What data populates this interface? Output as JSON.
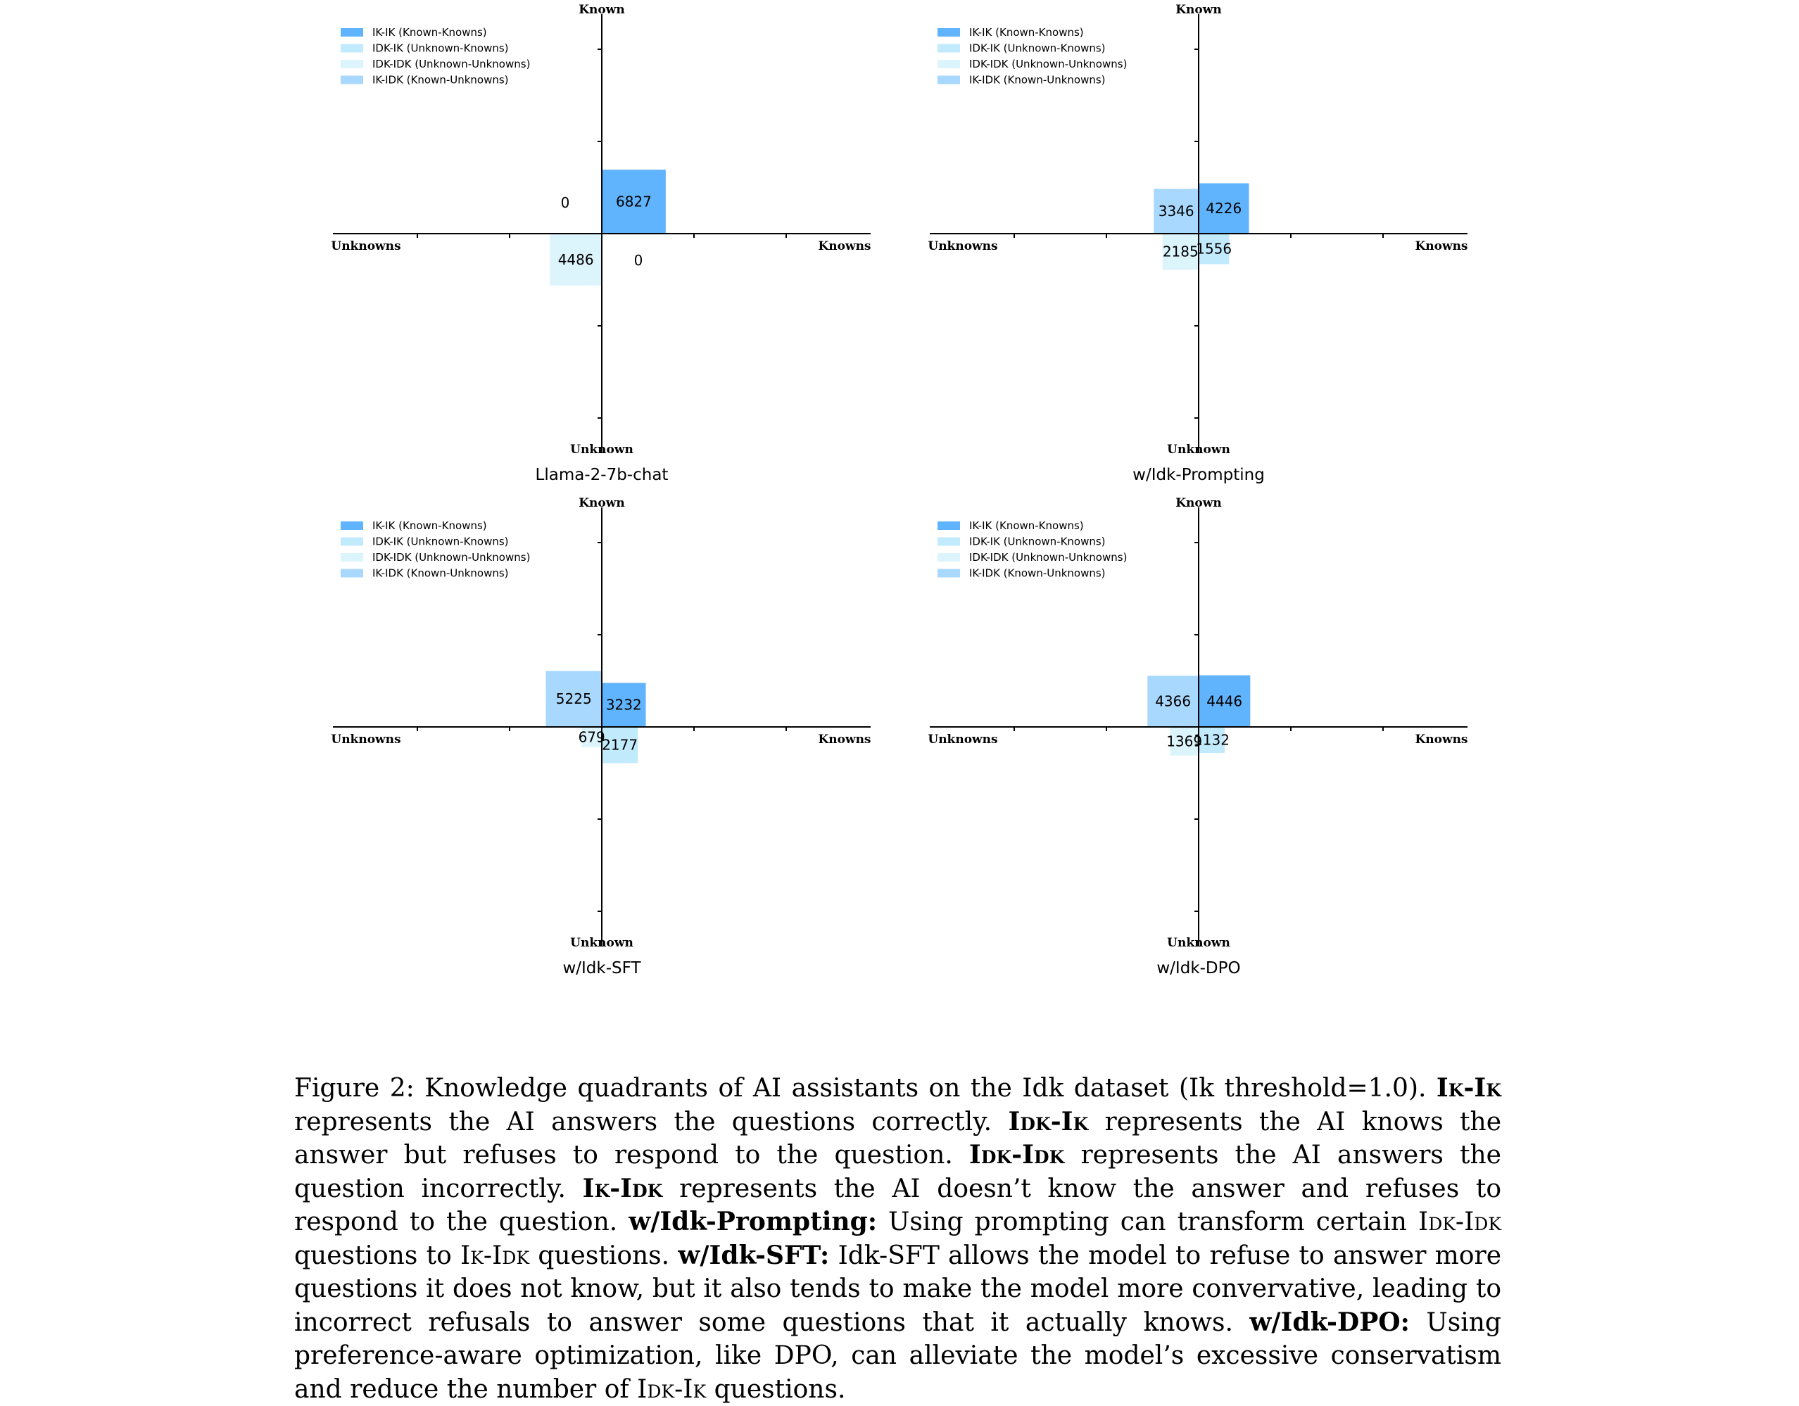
{
  "chart_data": [
    {
      "type": "bar",
      "title": "Llama-2-7b-chat",
      "axis_labels": {
        "top": "Known",
        "bottom": "Unknown",
        "left": "Unknowns",
        "right": "Knowns"
      },
      "legend": [
        "IK-IK (Known-Knowns)",
        "IDK-IK (Unknown-Knowns)",
        "IDK-IDK (Unknown-Unknowns)",
        "IK-IDK (Known-Unknowns)"
      ],
      "legend_position": "top-left",
      "quadrants": {
        "IK-IK": 6827,
        "IK-IDK": 0,
        "IDK-IDK": 4486,
        "IDK-IK": 0
      }
    },
    {
      "type": "bar",
      "title": "w/Idk-Prompting",
      "axis_labels": {
        "top": "Known",
        "bottom": "Unknown",
        "left": "Unknowns",
        "right": "Knowns"
      },
      "legend": [
        "IK-IK (Known-Knowns)",
        "IDK-IK (Unknown-Knowns)",
        "IDK-IDK (Unknown-Unknowns)",
        "IK-IDK (Known-Unknowns)"
      ],
      "legend_position": "top-left",
      "quadrants": {
        "IK-IK": 4226,
        "IK-IDK": 3346,
        "IDK-IDK": 2185,
        "IDK-IK": 1556
      }
    },
    {
      "type": "bar",
      "title": "w/Idk-SFT",
      "axis_labels": {
        "top": "Known",
        "bottom": "Unknown",
        "left": "Unknowns",
        "right": "Knowns"
      },
      "legend": [
        "IK-IK (Known-Knowns)",
        "IDK-IK (Unknown-Knowns)",
        "IDK-IDK (Unknown-Unknowns)",
        "IK-IDK (Known-Unknowns)"
      ],
      "legend_position": "top-left",
      "quadrants": {
        "IK-IK": 3232,
        "IK-IDK": 5225,
        "IDK-IDK": 679,
        "IDK-IK": 2177
      }
    },
    {
      "type": "bar",
      "title": "w/Idk-DPO",
      "axis_labels": {
        "top": "Known",
        "bottom": "Unknown",
        "left": "Unknowns",
        "right": "Knowns"
      },
      "legend": [
        "IK-IK (Known-Knowns)",
        "IDK-IK (Unknown-Knowns)",
        "IDK-IDK (Unknown-Unknowns)",
        "IK-IDK (Known-Unknowns)"
      ],
      "legend_position": "top-left",
      "quadrants": {
        "IK-IK": 4446,
        "IK-IDK": 4366,
        "IDK-IDK": 1369,
        "IDK-IK": 1132
      }
    }
  ],
  "colors": {
    "IK-IK": "#60b4fe",
    "IDK-IK": "#c2eafd",
    "IDK-IDK": "#dcf4fb",
    "IK-IDK": "#a8d8fd"
  },
  "caption": {
    "p1": "Figure 2: Knowledge quadrants of AI assistants on the Idk dataset (Ik threshold=1.0). ",
    "b1": "Ik-Ik",
    "p2": " represents the AI answers the questions correctly. ",
    "b2": "Idk-Ik",
    "p3": " represents the AI knows the answer but refuses to respond to the question. ",
    "b3": "Idk-Idk",
    "p4": " represents the AI answers the question incorrectly. ",
    "b4": "Ik-Idk",
    "p5": " represents the AI doesn’t know the answer and refuses to respond to the question. ",
    "b5": "w/Idk-Prompting:",
    "p6": " Using prompting can transform certain ",
    "s1": "Idk-Idk",
    "p7": " questions to ",
    "s2": "Ik-Idk",
    "p8": " questions. ",
    "b6": "w/Idk-SFT:",
    "p9": " Idk-SFT allows the model to refuse to answer more questions it does not know, but it also tends to make the model more convervative, leading to incorrect refusals to answer some questions that it actually knows. ",
    "b7": "w/Idk-DPO:",
    "p10": " Using preference-aware optimization, like DPO, can alleviate the model’s excessive conservatism and reduce the number of ",
    "s3": "Idk-Ik",
    "p11": " questions."
  }
}
